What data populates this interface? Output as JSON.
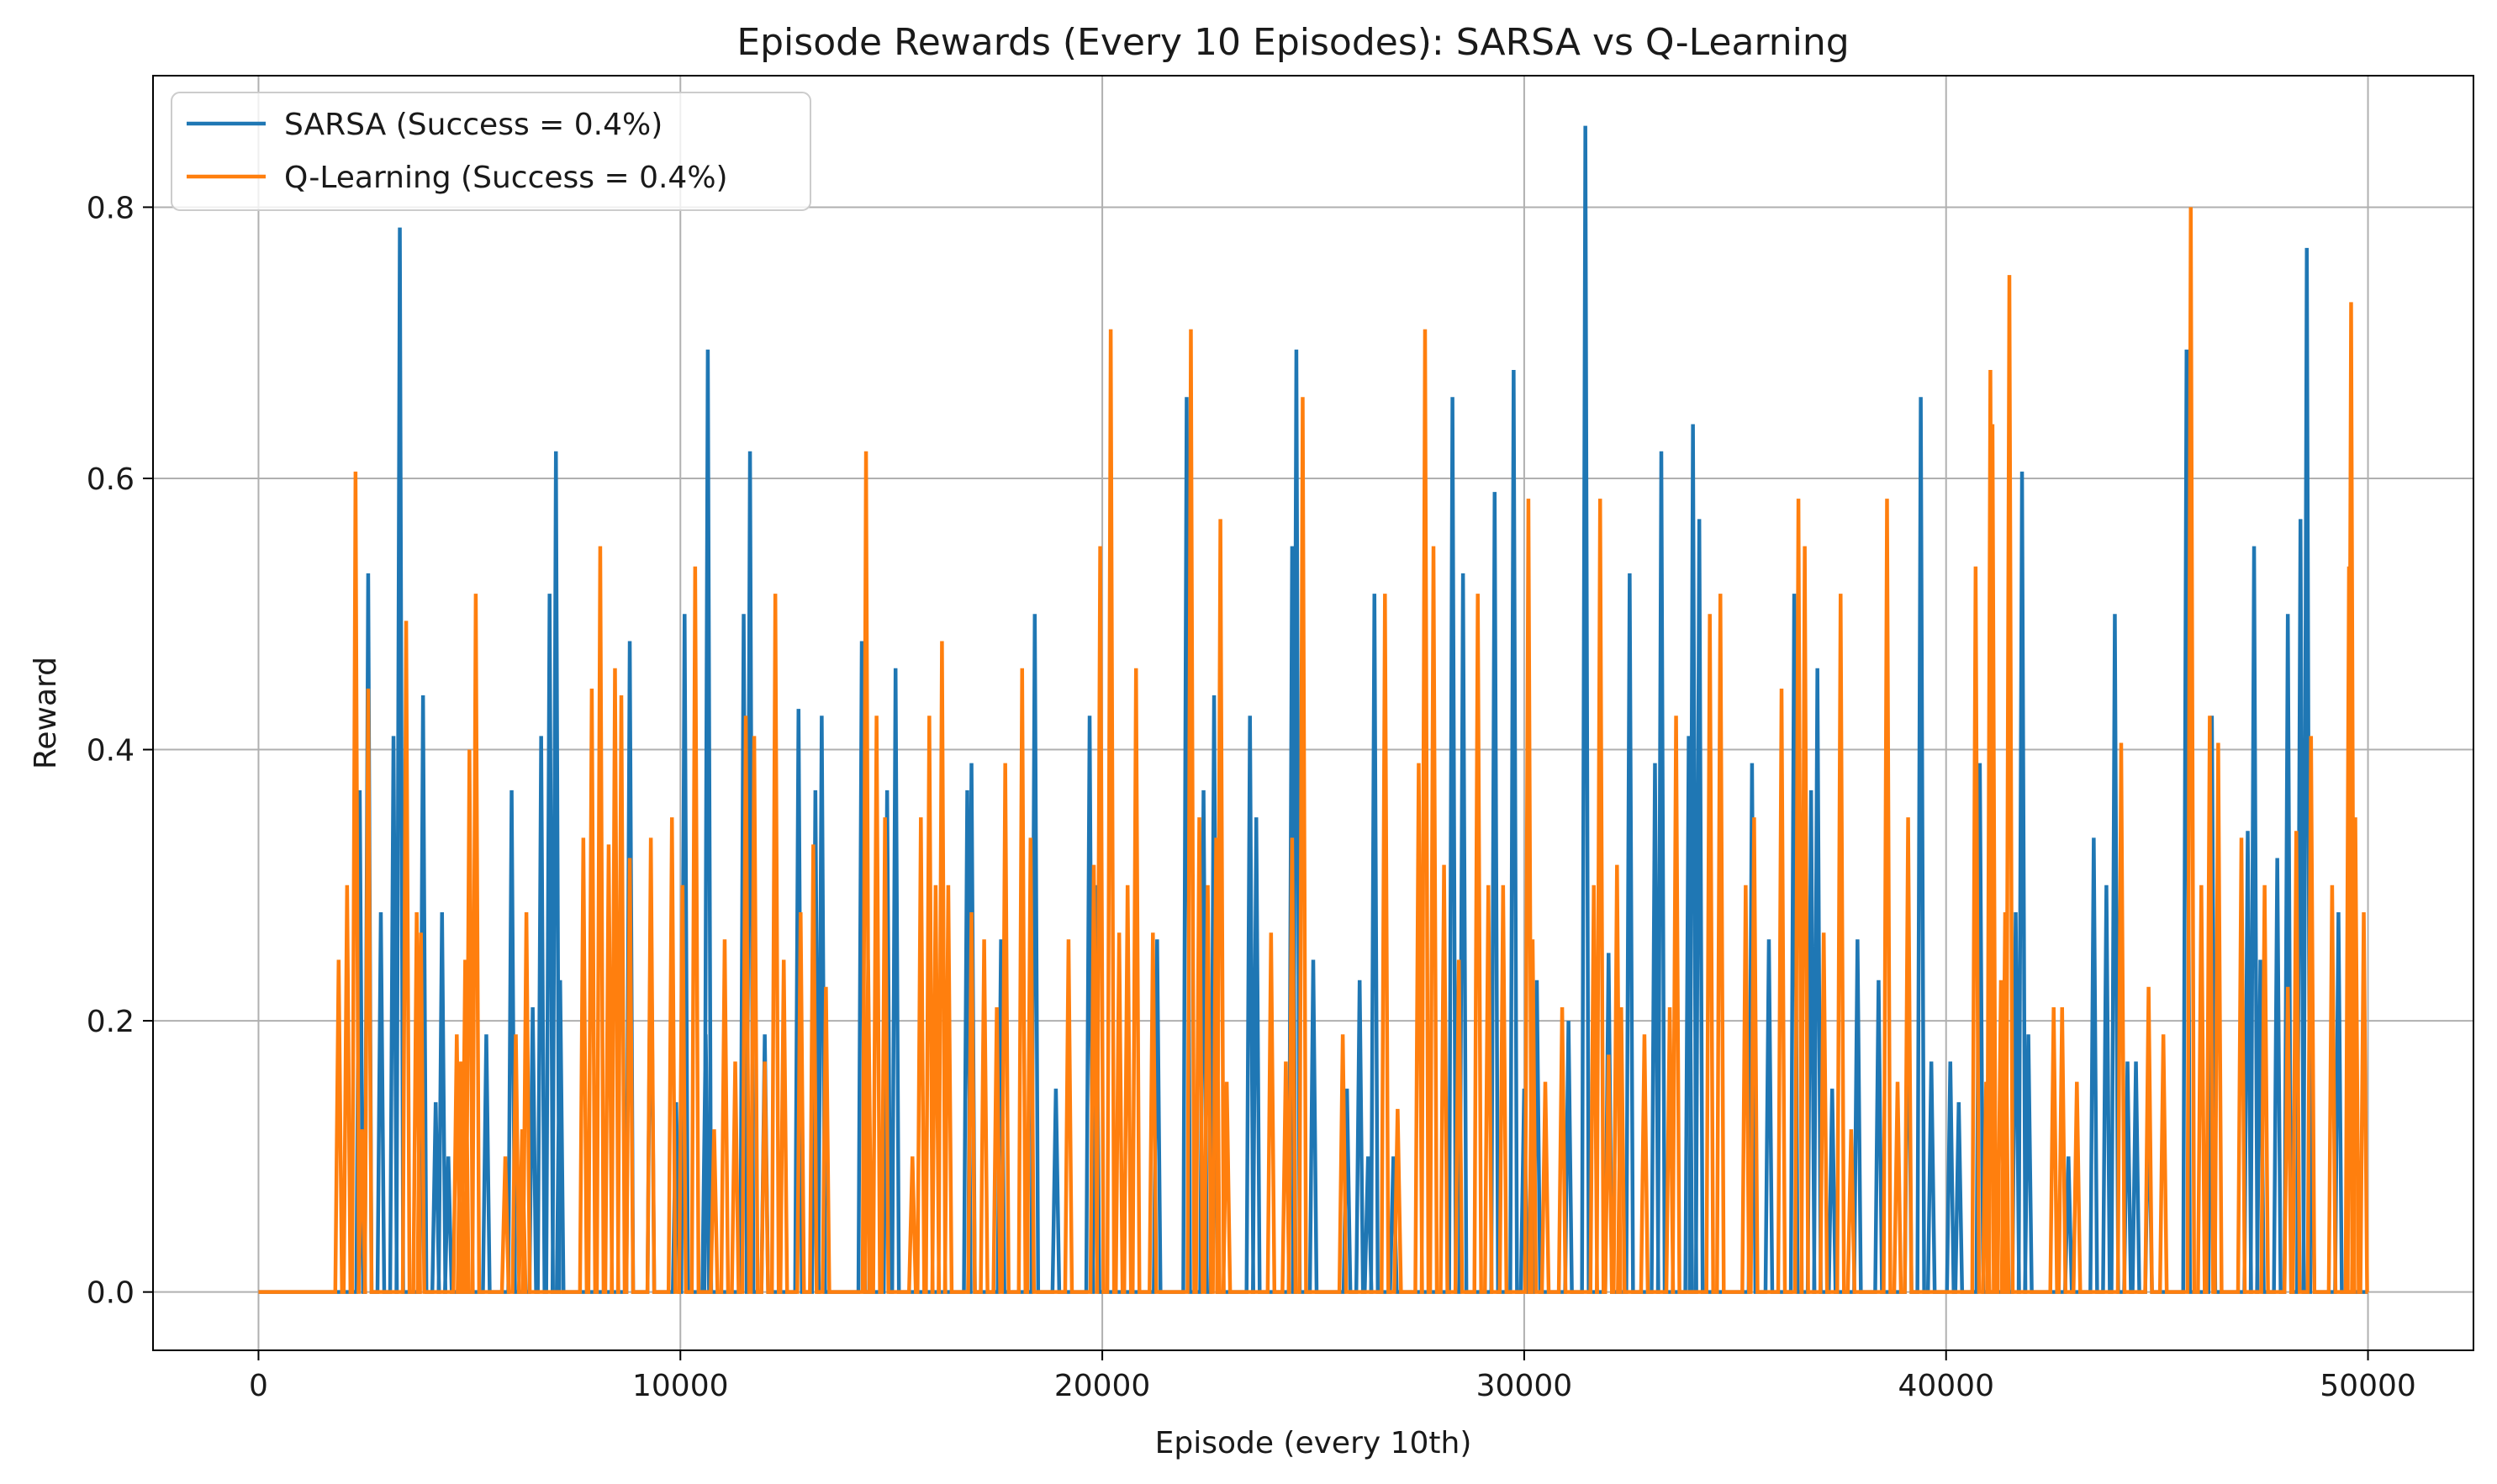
{
  "chart_data": {
    "type": "line",
    "title": "Episode Rewards (Every 10 Episodes): SARSA vs Q-Learning",
    "xlabel": "Episode (every 10th)",
    "ylabel": "Reward",
    "xlim": [
      -2500,
      52500
    ],
    "ylim": [
      -0.043,
      0.897
    ],
    "xticks": [
      0,
      10000,
      20000,
      30000,
      40000,
      50000
    ],
    "xtick_labels": [
      "0",
      "10000",
      "20000",
      "30000",
      "40000",
      "50000"
    ],
    "yticks": [
      0.0,
      0.2,
      0.4,
      0.6,
      0.8
    ],
    "ytick_labels": [
      "0.0",
      "0.2",
      "0.4",
      "0.6",
      "0.8"
    ],
    "grid": true,
    "legend_position": "top-left",
    "baseline": 0.0,
    "x_start": 0,
    "x_end": 50000,
    "series": [
      {
        "name": "SARSA (Success = 0.4%)",
        "color": "#1f77b4",
        "spike_note": "line returns to 0.0 between episodes; each pair is [episode, reward]",
        "spikes": [
          [
            2400,
            0.37
          ],
          [
            2600,
            0.53
          ],
          [
            2900,
            0.28
          ],
          [
            3200,
            0.41
          ],
          [
            3350,
            0.785
          ],
          [
            3900,
            0.44
          ],
          [
            4200,
            0.14
          ],
          [
            4350,
            0.28
          ],
          [
            4500,
            0.1
          ],
          [
            5400,
            0.19
          ],
          [
            6000,
            0.37
          ],
          [
            6500,
            0.21
          ],
          [
            6700,
            0.41
          ],
          [
            6900,
            0.515
          ],
          [
            7050,
            0.62
          ],
          [
            7150,
            0.23
          ],
          [
            8800,
            0.48
          ],
          [
            9300,
            0.3
          ],
          [
            9900,
            0.14
          ],
          [
            10100,
            0.5
          ],
          [
            10600,
            0.19
          ],
          [
            10650,
            0.695
          ],
          [
            11500,
            0.5
          ],
          [
            11650,
            0.62
          ],
          [
            12000,
            0.19
          ],
          [
            12800,
            0.43
          ],
          [
            13200,
            0.37
          ],
          [
            13350,
            0.425
          ],
          [
            14300,
            0.48
          ],
          [
            14900,
            0.37
          ],
          [
            15100,
            0.46
          ],
          [
            16800,
            0.37
          ],
          [
            16900,
            0.39
          ],
          [
            17600,
            0.26
          ],
          [
            18400,
            0.5
          ],
          [
            18900,
            0.15
          ],
          [
            19700,
            0.425
          ],
          [
            19850,
            0.3
          ],
          [
            21300,
            0.26
          ],
          [
            22000,
            0.66
          ],
          [
            22400,
            0.37
          ],
          [
            22650,
            0.44
          ],
          [
            23500,
            0.425
          ],
          [
            23650,
            0.35
          ],
          [
            24500,
            0.55
          ],
          [
            24600,
            0.695
          ],
          [
            25000,
            0.245
          ],
          [
            25800,
            0.15
          ],
          [
            26100,
            0.23
          ],
          [
            26300,
            0.1
          ],
          [
            26450,
            0.515
          ],
          [
            26900,
            0.1
          ],
          [
            28300,
            0.66
          ],
          [
            28550,
            0.53
          ],
          [
            29300,
            0.59
          ],
          [
            29750,
            0.68
          ],
          [
            30000,
            0.15
          ],
          [
            30300,
            0.23
          ],
          [
            31050,
            0.2
          ],
          [
            31450,
            0.86
          ],
          [
            32000,
            0.25
          ],
          [
            32500,
            0.53
          ],
          [
            33100,
            0.39
          ],
          [
            33250,
            0.62
          ],
          [
            33900,
            0.41
          ],
          [
            34000,
            0.64
          ],
          [
            34150,
            0.57
          ],
          [
            35400,
            0.39
          ],
          [
            35800,
            0.26
          ],
          [
            36400,
            0.515
          ],
          [
            36800,
            0.37
          ],
          [
            36950,
            0.46
          ],
          [
            37300,
            0.15
          ],
          [
            37900,
            0.26
          ],
          [
            38400,
            0.23
          ],
          [
            39100,
            0.26
          ],
          [
            39400,
            0.66
          ],
          [
            39650,
            0.17
          ],
          [
            40100,
            0.17
          ],
          [
            40300,
            0.14
          ],
          [
            40800,
            0.39
          ],
          [
            41650,
            0.28
          ],
          [
            41800,
            0.605
          ],
          [
            41950,
            0.19
          ],
          [
            42900,
            0.1
          ],
          [
            43500,
            0.335
          ],
          [
            43800,
            0.3
          ],
          [
            44000,
            0.5
          ],
          [
            44300,
            0.17
          ],
          [
            44500,
            0.17
          ],
          [
            44800,
            0.155
          ],
          [
            45700,
            0.695
          ],
          [
            46300,
            0.425
          ],
          [
            47150,
            0.34
          ],
          [
            47300,
            0.55
          ],
          [
            47450,
            0.245
          ],
          [
            47850,
            0.32
          ],
          [
            48100,
            0.5
          ],
          [
            48400,
            0.57
          ],
          [
            48550,
            0.77
          ],
          [
            48650,
            0.21
          ],
          [
            49300,
            0.28
          ]
        ]
      },
      {
        "name": "Q-Learning (Success = 0.4%)",
        "color": "#ff7f0e",
        "spike_note": "line returns to 0.0 between episodes; each pair is [episode, reward]",
        "spikes": [
          [
            1900,
            0.245
          ],
          [
            2100,
            0.3
          ],
          [
            2300,
            0.605
          ],
          [
            2450,
            0.12
          ],
          [
            2600,
            0.445
          ],
          [
            3500,
            0.495
          ],
          [
            3750,
            0.28
          ],
          [
            3850,
            0.265
          ],
          [
            4700,
            0.19
          ],
          [
            4800,
            0.17
          ],
          [
            4900,
            0.245
          ],
          [
            5000,
            0.4
          ],
          [
            5150,
            0.515
          ],
          [
            5850,
            0.1
          ],
          [
            6100,
            0.19
          ],
          [
            6250,
            0.12
          ],
          [
            6350,
            0.28
          ],
          [
            7700,
            0.335
          ],
          [
            7900,
            0.445
          ],
          [
            8100,
            0.55
          ],
          [
            8300,
            0.33
          ],
          [
            8450,
            0.46
          ],
          [
            8600,
            0.44
          ],
          [
            8800,
            0.32
          ],
          [
            9300,
            0.335
          ],
          [
            9800,
            0.35
          ],
          [
            10050,
            0.3
          ],
          [
            10350,
            0.535
          ],
          [
            10800,
            0.12
          ],
          [
            11050,
            0.26
          ],
          [
            11300,
            0.17
          ],
          [
            11550,
            0.425
          ],
          [
            11750,
            0.41
          ],
          [
            12000,
            0.17
          ],
          [
            12250,
            0.515
          ],
          [
            12450,
            0.245
          ],
          [
            12850,
            0.28
          ],
          [
            13150,
            0.33
          ],
          [
            13450,
            0.225
          ],
          [
            14400,
            0.62
          ],
          [
            14450,
            0.245
          ],
          [
            14650,
            0.425
          ],
          [
            14850,
            0.35
          ],
          [
            15500,
            0.1
          ],
          [
            15700,
            0.35
          ],
          [
            15900,
            0.425
          ],
          [
            16050,
            0.3
          ],
          [
            16200,
            0.48
          ],
          [
            16350,
            0.3
          ],
          [
            16900,
            0.28
          ],
          [
            17200,
            0.26
          ],
          [
            17500,
            0.21
          ],
          [
            17700,
            0.39
          ],
          [
            18100,
            0.46
          ],
          [
            18300,
            0.335
          ],
          [
            19200,
            0.26
          ],
          [
            19800,
            0.315
          ],
          [
            19950,
            0.55
          ],
          [
            20200,
            0.71
          ],
          [
            20400,
            0.265
          ],
          [
            20600,
            0.3
          ],
          [
            20800,
            0.46
          ],
          [
            21200,
            0.265
          ],
          [
            22100,
            0.71
          ],
          [
            22300,
            0.35
          ],
          [
            22500,
            0.3
          ],
          [
            22700,
            0.335
          ],
          [
            22800,
            0.57
          ],
          [
            22950,
            0.155
          ],
          [
            24000,
            0.265
          ],
          [
            24350,
            0.17
          ],
          [
            24500,
            0.335
          ],
          [
            24750,
            0.66
          ],
          [
            25700,
            0.19
          ],
          [
            26700,
            0.515
          ],
          [
            27000,
            0.135
          ],
          [
            27500,
            0.39
          ],
          [
            27650,
            0.71
          ],
          [
            27850,
            0.55
          ],
          [
            28100,
            0.315
          ],
          [
            28450,
            0.245
          ],
          [
            28900,
            0.515
          ],
          [
            29150,
            0.3
          ],
          [
            29500,
            0.3
          ],
          [
            30100,
            0.585
          ],
          [
            30200,
            0.26
          ],
          [
            30500,
            0.155
          ],
          [
            30900,
            0.21
          ],
          [
            31650,
            0.3
          ],
          [
            31800,
            0.585
          ],
          [
            32000,
            0.175
          ],
          [
            32200,
            0.315
          ],
          [
            32300,
            0.21
          ],
          [
            32850,
            0.19
          ],
          [
            33450,
            0.21
          ],
          [
            33600,
            0.425
          ],
          [
            34400,
            0.5
          ],
          [
            34650,
            0.515
          ],
          [
            35250,
            0.3
          ],
          [
            35450,
            0.35
          ],
          [
            36100,
            0.445
          ],
          [
            36500,
            0.585
          ],
          [
            36650,
            0.55
          ],
          [
            37100,
            0.265
          ],
          [
            37500,
            0.515
          ],
          [
            37750,
            0.12
          ],
          [
            38600,
            0.585
          ],
          [
            38850,
            0.155
          ],
          [
            39100,
            0.35
          ],
          [
            40700,
            0.535
          ],
          [
            40950,
            0.155
          ],
          [
            41050,
            0.68
          ],
          [
            41100,
            0.64
          ],
          [
            41300,
            0.23
          ],
          [
            41400,
            0.28
          ],
          [
            41500,
            0.75
          ],
          [
            42550,
            0.21
          ],
          [
            42750,
            0.21
          ],
          [
            43100,
            0.155
          ],
          [
            44150,
            0.405
          ],
          [
            44800,
            0.225
          ],
          [
            45150,
            0.19
          ],
          [
            45800,
            0.8
          ],
          [
            46050,
            0.3
          ],
          [
            46250,
            0.425
          ],
          [
            46450,
            0.405
          ],
          [
            47000,
            0.335
          ],
          [
            47550,
            0.3
          ],
          [
            48100,
            0.225
          ],
          [
            48300,
            0.34
          ],
          [
            48650,
            0.41
          ],
          [
            49150,
            0.3
          ],
          [
            49550,
            0.535
          ],
          [
            49600,
            0.73
          ],
          [
            49700,
            0.35
          ],
          [
            49900,
            0.28
          ]
        ]
      }
    ]
  }
}
